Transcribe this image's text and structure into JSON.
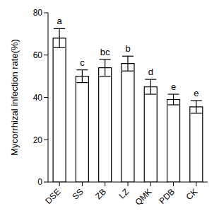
{
  "chart_data": {
    "type": "bar",
    "y_label": "Mycorrhizal infection rate(%)",
    "categories": [
      "DSE",
      "SS",
      "ZB",
      "LZ",
      "QMK",
      "PDB",
      "CK"
    ],
    "values": [
      68,
      50,
      54,
      56,
      45,
      39,
      35.5
    ],
    "errors": [
      4.5,
      3,
      4,
      3.5,
      3.5,
      2.5,
      3
    ],
    "significance_letters": [
      "a",
      "c",
      "bc",
      "b",
      "d",
      "e",
      "e"
    ],
    "color": "#ffffff",
    "ylim": [
      0,
      80
    ],
    "yticks": [
      0,
      20,
      40,
      60,
      80
    ],
    "grid": false
  }
}
